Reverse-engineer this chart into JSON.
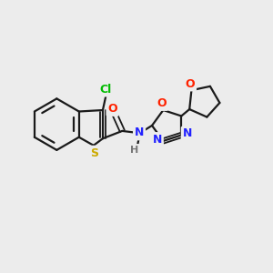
{
  "background_color": "#ececec",
  "bond_color": "#1a1a1a",
  "atoms": {
    "Cl": {
      "color": "#00bb00"
    },
    "S": {
      "color": "#ccaa00"
    },
    "O": {
      "color": "#ff2200"
    },
    "N": {
      "color": "#2222ff"
    },
    "H": {
      "color": "#777777"
    }
  },
  "figsize": [
    3.0,
    3.0
  ],
  "dpi": 100
}
